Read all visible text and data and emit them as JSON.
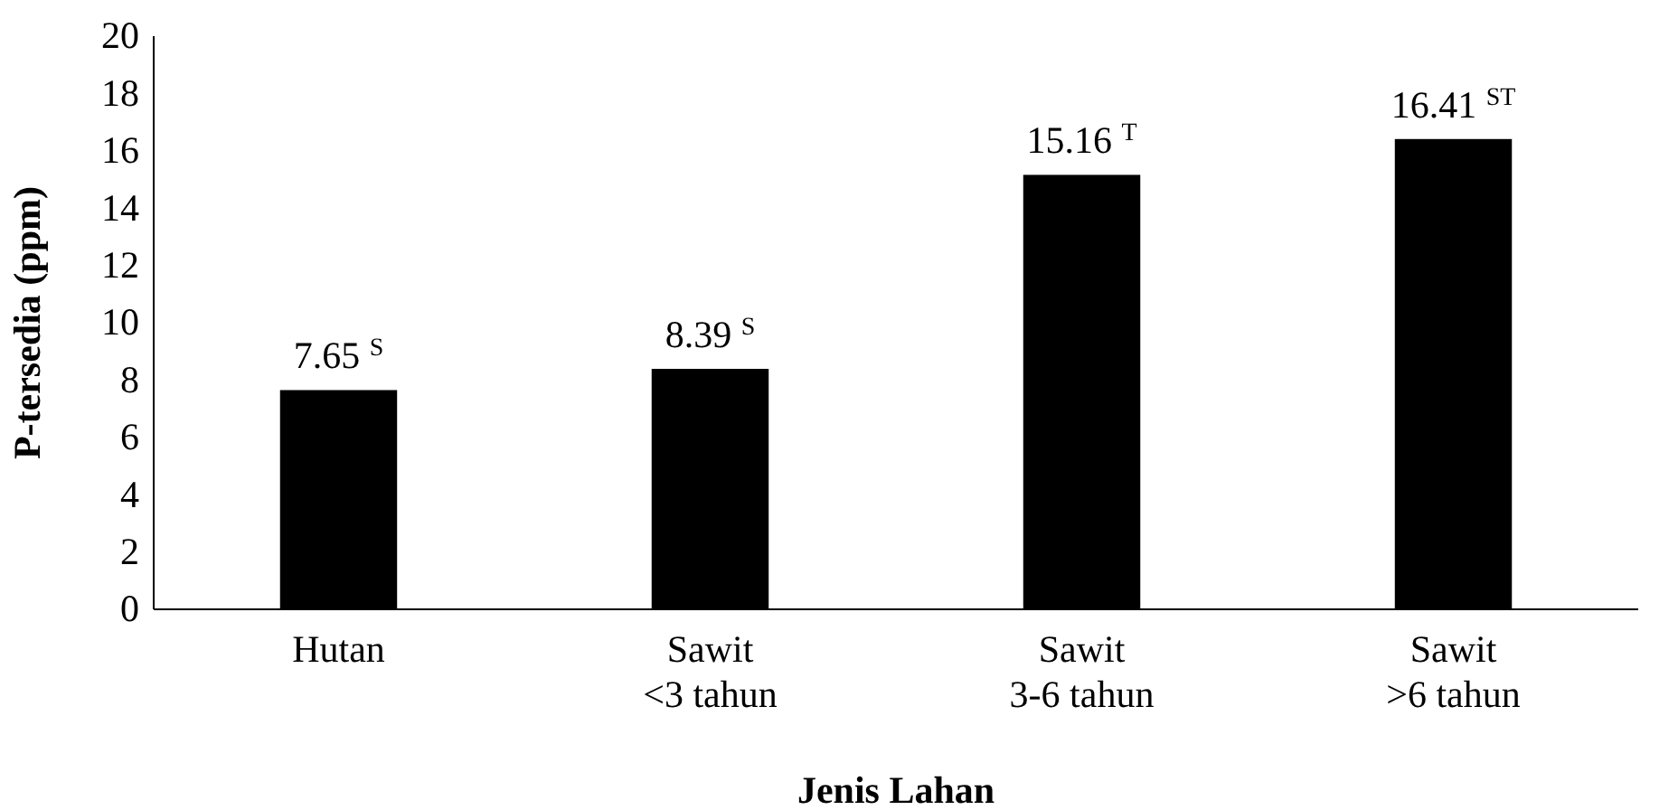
{
  "chart_data": {
    "type": "bar",
    "xlabel": "Jenis Lahan",
    "ylabel": "P-tersedia (ppm)",
    "categories": [
      "Hutan",
      "Sawit\n<3 tahun",
      "Sawit\n3-6 tahun",
      "Sawit\n>6 tahun"
    ],
    "values": [
      7.65,
      8.39,
      15.16,
      16.41
    ],
    "color": "#000000",
    "value_labels": [
      "7.65 $^{S}$",
      "8.39 $^{S}$",
      "15.16 $^{T}$",
      "16.41 $^{ST}$"
    ],
    "ylim": [
      0,
      20
    ],
    "yticks": [
      0,
      2,
      4,
      6,
      8,
      10,
      12,
      14,
      16,
      18,
      20
    ],
    "grid": false
  }
}
